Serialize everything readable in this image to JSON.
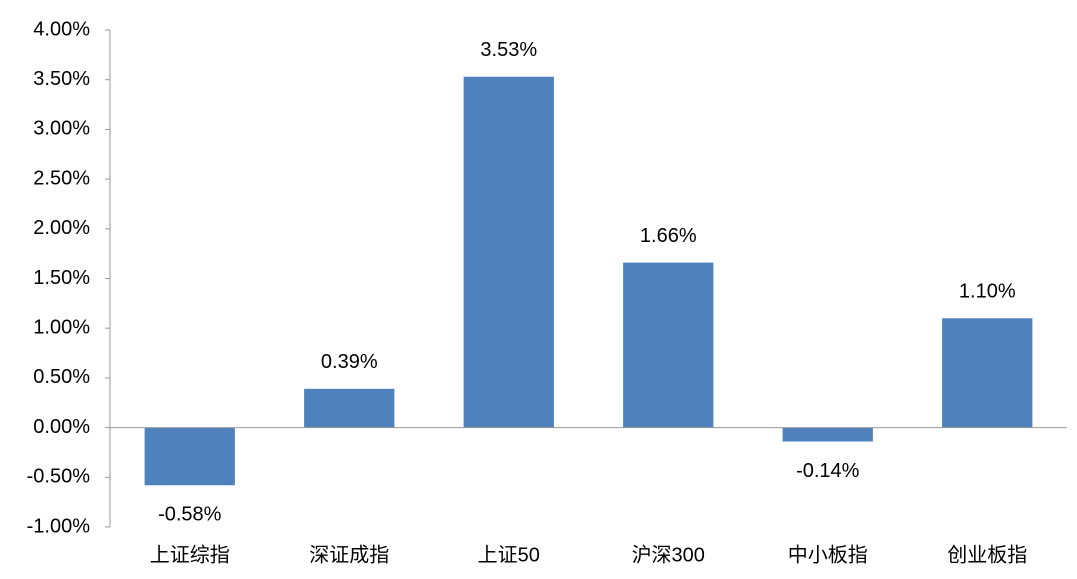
{
  "chart_data": {
    "type": "bar",
    "categories": [
      "上证综指",
      "深证成指",
      "上证50",
      "沪深300",
      "中小板指",
      "创业板指"
    ],
    "values": [
      -0.58,
      0.39,
      3.53,
      1.66,
      -0.14,
      1.1
    ],
    "value_labels": [
      "-0.58%",
      "0.39%",
      "3.53%",
      "1.66%",
      "-0.14%",
      "1.10%"
    ],
    "color": "#4f81bd",
    "ylim": [
      -1,
      4
    ],
    "yticks": [
      {
        "value": -1,
        "label": "-1.00%"
      },
      {
        "value": -0.5,
        "label": "-0.50%"
      },
      {
        "value": 0,
        "label": "0.00%"
      },
      {
        "value": 0.5,
        "label": "0.50%"
      },
      {
        "value": 1,
        "label": "1.00%"
      },
      {
        "value": 1.5,
        "label": "1.50%"
      },
      {
        "value": 2,
        "label": "2.00%"
      },
      {
        "value": 2.5,
        "label": "2.50%"
      },
      {
        "value": 3,
        "label": "3.00%"
      },
      {
        "value": 3.5,
        "label": "3.50%"
      },
      {
        "value": 4,
        "label": "4.00%"
      }
    ],
    "grid": false
  }
}
